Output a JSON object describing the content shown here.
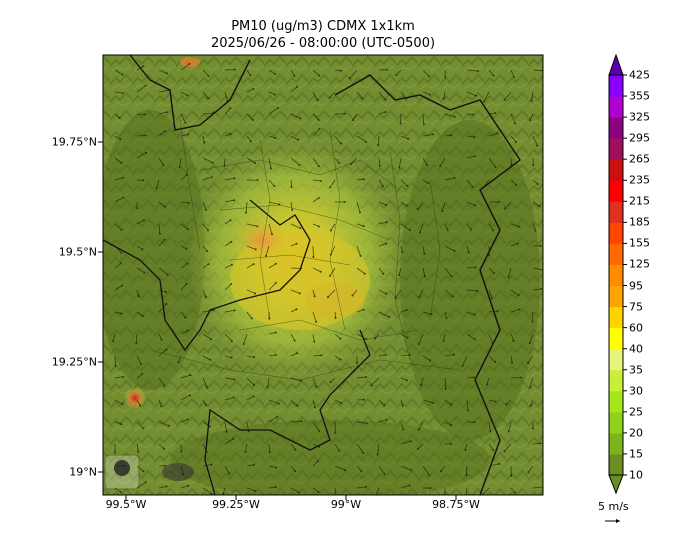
{
  "title": {
    "line1": "PM10 (ug/m3) CDMX 1x1km",
    "line2": "2025/06/26 - 08:00:00 (UTC-0500)"
  },
  "axes": {
    "lat_labels": [
      "19.75°N",
      "19.5°N",
      "19.25°N",
      "19°N"
    ],
    "lon_labels": [
      "99.5°W",
      "99.25°W",
      "99°W",
      "98.75°W"
    ]
  },
  "colorbar": {
    "levels": [
      "10",
      "15",
      "20",
      "25",
      "30",
      "35",
      "40",
      "60",
      "75",
      "95",
      "125",
      "155",
      "185",
      "215",
      "235",
      "265",
      "295",
      "325",
      "355",
      "425"
    ],
    "colors": [
      "#6b8e23",
      "#7ab51d",
      "#8fd11a",
      "#a8e61c",
      "#c8f03a",
      "#e6f57a",
      "#ffff00",
      "#ffd400",
      "#ffa500",
      "#ff8c00",
      "#ff6a00",
      "#ff4500",
      "#e03020",
      "#ff0000",
      "#cc1010",
      "#a0105a",
      "#8b0080",
      "#b000d0",
      "#8a00ff",
      "#5a00b0"
    ]
  },
  "wind": {
    "label": "5 m/s"
  },
  "logos": [
    "sedema-logo",
    "cdmx-logo"
  ]
}
